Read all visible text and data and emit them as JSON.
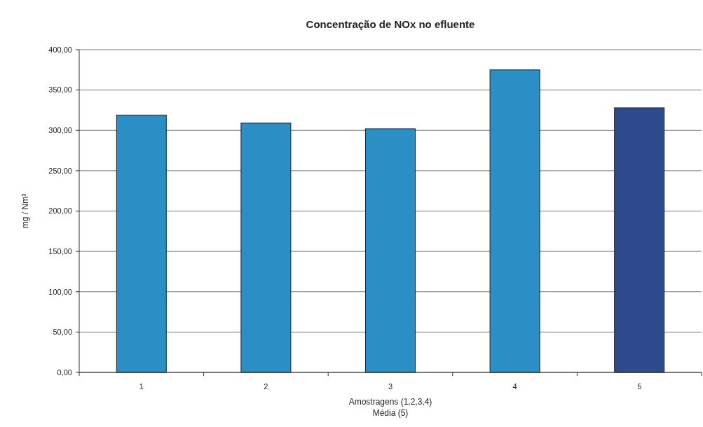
{
  "chart_data": {
    "type": "bar",
    "title": "Concentração de NOx no efluente",
    "xlabel": "Amostragens (1,2,3,4)\nMédia (5)",
    "ylabel": "mg / Nm³",
    "categories": [
      "1",
      "2",
      "3",
      "4",
      "5"
    ],
    "values": [
      319,
      309,
      302,
      375,
      328
    ],
    "colors": [
      "#2b8fc6",
      "#2b8fc6",
      "#2b8fc6",
      "#2b8fc6",
      "#2e4a8c"
    ],
    "ylim": [
      0,
      400
    ],
    "yticks": [
      {
        "value": 0,
        "label": "0,00"
      },
      {
        "value": 50,
        "label": "50,00"
      },
      {
        "value": 100,
        "label": "100,00"
      },
      {
        "value": 150,
        "label": "150,00"
      },
      {
        "value": 200,
        "label": "200,00"
      },
      {
        "value": 250,
        "label": "250,00"
      },
      {
        "value": 300,
        "label": "300,00"
      },
      {
        "value": 350,
        "label": "350,00"
      },
      {
        "value": 400,
        "label": "400,00"
      }
    ],
    "grid": "y"
  }
}
